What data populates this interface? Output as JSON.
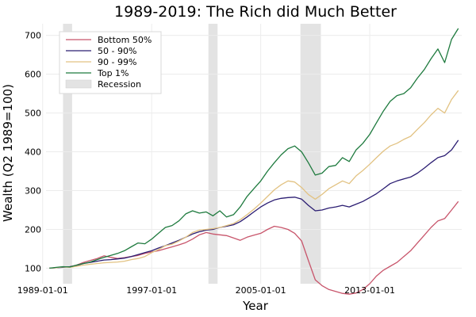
{
  "chart_data": {
    "type": "line",
    "title": "1989-2019: The Rich did Much Better",
    "xlabel": "Year",
    "ylabel": "Wealth (Q2 1989=100)",
    "xlim": [
      "1989-04-01",
      "2019-10-01"
    ],
    "ylim": [
      60,
      730
    ],
    "x_ticks": [
      "1989-01-01",
      "1997-01-01",
      "2005-01-01",
      "2013-01-01"
    ],
    "y_ticks": [
      100,
      200,
      300,
      400,
      500,
      600,
      700
    ],
    "grid": true,
    "legend_position": "top-left",
    "recessions": [
      {
        "start": "1990-07-01",
        "end": "1991-03-01"
      },
      {
        "start": "2001-03-01",
        "end": "2001-11-01"
      },
      {
        "start": "2007-12-01",
        "end": "2009-06-01"
      }
    ],
    "recession_label": "Recession",
    "recession_color": "#e3e3e3",
    "series": [
      {
        "name": "Bottom 50%",
        "color": "#c8556b",
        "points": [
          [
            "1989-07-01",
            100
          ],
          [
            "1990-01-01",
            101
          ],
          [
            "1990-07-01",
            103
          ],
          [
            "1991-01-01",
            104
          ],
          [
            "1991-07-01",
            108
          ],
          [
            "1992-01-01",
            115
          ],
          [
            "1992-07-01",
            120
          ],
          [
            "1993-01-01",
            125
          ],
          [
            "1993-07-01",
            132
          ],
          [
            "1994-01-01",
            128
          ],
          [
            "1994-07-01",
            125
          ],
          [
            "1995-01-01",
            127
          ],
          [
            "1995-07-01",
            130
          ],
          [
            "1996-01-01",
            133
          ],
          [
            "1996-07-01",
            138
          ],
          [
            "1997-01-01",
            142
          ],
          [
            "1997-07-01",
            145
          ],
          [
            "1998-01-01",
            150
          ],
          [
            "1998-07-01",
            155
          ],
          [
            "1999-01-01",
            160
          ],
          [
            "1999-07-01",
            166
          ],
          [
            "2000-01-01",
            175
          ],
          [
            "2000-07-01",
            186
          ],
          [
            "2001-01-01",
            192
          ],
          [
            "2001-07-01",
            188
          ],
          [
            "2002-01-01",
            186
          ],
          [
            "2002-07-01",
            184
          ],
          [
            "2003-01-01",
            178
          ],
          [
            "2003-07-01",
            172
          ],
          [
            "2004-01-01",
            180
          ],
          [
            "2004-07-01",
            185
          ],
          [
            "2005-01-01",
            190
          ],
          [
            "2005-07-01",
            200
          ],
          [
            "2006-01-01",
            208
          ],
          [
            "2006-07-01",
            205
          ],
          [
            "2007-01-01",
            200
          ],
          [
            "2007-07-01",
            190
          ],
          [
            "2008-01-01",
            170
          ],
          [
            "2008-07-01",
            120
          ],
          [
            "2009-01-01",
            70
          ],
          [
            "2009-07-01",
            55
          ],
          [
            "2010-01-01",
            45
          ],
          [
            "2010-07-01",
            40
          ],
          [
            "2011-01-01",
            35
          ],
          [
            "2011-07-01",
            33
          ],
          [
            "2012-01-01",
            36
          ],
          [
            "2012-07-01",
            45
          ],
          [
            "2013-01-01",
            60
          ],
          [
            "2013-07-01",
            80
          ],
          [
            "2014-01-01",
            95
          ],
          [
            "2014-07-01",
            105
          ],
          [
            "2015-01-01",
            115
          ],
          [
            "2015-07-01",
            130
          ],
          [
            "2016-01-01",
            145
          ],
          [
            "2016-07-01",
            165
          ],
          [
            "2017-01-01",
            185
          ],
          [
            "2017-07-01",
            205
          ],
          [
            "2018-01-01",
            222
          ],
          [
            "2018-07-01",
            228
          ],
          [
            "2019-01-01",
            250
          ],
          [
            "2019-07-01",
            272
          ]
        ]
      },
      {
        "name": "50 - 90%",
        "color": "#2b1d72",
        "points": [
          [
            "1989-07-01",
            100
          ],
          [
            "1990-01-01",
            101
          ],
          [
            "1990-07-01",
            102
          ],
          [
            "1991-01-01",
            104
          ],
          [
            "1991-07-01",
            107
          ],
          [
            "1992-01-01",
            112
          ],
          [
            "1992-07-01",
            115
          ],
          [
            "1993-01-01",
            118
          ],
          [
            "1993-07-01",
            121
          ],
          [
            "1994-01-01",
            122
          ],
          [
            "1994-07-01",
            124
          ],
          [
            "1995-01-01",
            126
          ],
          [
            "1995-07-01",
            130
          ],
          [
            "1996-01-01",
            135
          ],
          [
            "1996-07-01",
            140
          ],
          [
            "1997-01-01",
            145
          ],
          [
            "1997-07-01",
            152
          ],
          [
            "1998-01-01",
            158
          ],
          [
            "1998-07-01",
            165
          ],
          [
            "1999-01-01",
            172
          ],
          [
            "1999-07-01",
            180
          ],
          [
            "2000-01-01",
            188
          ],
          [
            "2000-07-01",
            194
          ],
          [
            "2001-01-01",
            198
          ],
          [
            "2001-07-01",
            200
          ],
          [
            "2002-01-01",
            205
          ],
          [
            "2002-07-01",
            208
          ],
          [
            "2003-01-01",
            212
          ],
          [
            "2003-07-01",
            220
          ],
          [
            "2004-01-01",
            232
          ],
          [
            "2004-07-01",
            245
          ],
          [
            "2005-01-01",
            258
          ],
          [
            "2005-07-01",
            268
          ],
          [
            "2006-01-01",
            276
          ],
          [
            "2006-07-01",
            280
          ],
          [
            "2007-01-01",
            282
          ],
          [
            "2007-07-01",
            283
          ],
          [
            "2008-01-01",
            278
          ],
          [
            "2008-07-01",
            262
          ],
          [
            "2009-01-01",
            248
          ],
          [
            "2009-07-01",
            250
          ],
          [
            "2010-01-01",
            255
          ],
          [
            "2010-07-01",
            258
          ],
          [
            "2011-01-01",
            262
          ],
          [
            "2011-07-01",
            258
          ],
          [
            "2012-01-01",
            265
          ],
          [
            "2012-07-01",
            272
          ],
          [
            "2013-01-01",
            282
          ],
          [
            "2013-07-01",
            292
          ],
          [
            "2014-01-01",
            305
          ],
          [
            "2014-07-01",
            318
          ],
          [
            "2015-01-01",
            325
          ],
          [
            "2015-07-01",
            330
          ],
          [
            "2016-01-01",
            335
          ],
          [
            "2016-07-01",
            345
          ],
          [
            "2017-01-01",
            358
          ],
          [
            "2017-07-01",
            372
          ],
          [
            "2018-01-01",
            385
          ],
          [
            "2018-07-01",
            390
          ],
          [
            "2019-01-01",
            405
          ],
          [
            "2019-07-01",
            430
          ]
        ]
      },
      {
        "name": "90 - 99%",
        "color": "#e2c282",
        "points": [
          [
            "1989-07-01",
            100
          ],
          [
            "1990-01-01",
            101
          ],
          [
            "1990-07-01",
            103
          ],
          [
            "1991-01-01",
            102
          ],
          [
            "1991-07-01",
            105
          ],
          [
            "1992-01-01",
            108
          ],
          [
            "1992-07-01",
            110
          ],
          [
            "1993-01-01",
            112
          ],
          [
            "1993-07-01",
            114
          ],
          [
            "1994-01-01",
            115
          ],
          [
            "1994-07-01",
            116
          ],
          [
            "1995-01-01",
            118
          ],
          [
            "1995-07-01",
            122
          ],
          [
            "1996-01-01",
            125
          ],
          [
            "1996-07-01",
            130
          ],
          [
            "1997-01-01",
            140
          ],
          [
            "1997-07-01",
            148
          ],
          [
            "1998-01-01",
            158
          ],
          [
            "1998-07-01",
            162
          ],
          [
            "1999-01-01",
            170
          ],
          [
            "1999-07-01",
            180
          ],
          [
            "2000-01-01",
            192
          ],
          [
            "2000-07-01",
            198
          ],
          [
            "2001-01-01",
            200
          ],
          [
            "2001-07-01",
            202
          ],
          [
            "2002-01-01",
            205
          ],
          [
            "2002-07-01",
            210
          ],
          [
            "2003-01-01",
            215
          ],
          [
            "2003-07-01",
            225
          ],
          [
            "2004-01-01",
            238
          ],
          [
            "2004-07-01",
            252
          ],
          [
            "2005-01-01",
            268
          ],
          [
            "2005-07-01",
            285
          ],
          [
            "2006-01-01",
            302
          ],
          [
            "2006-07-01",
            315
          ],
          [
            "2007-01-01",
            325
          ],
          [
            "2007-07-01",
            322
          ],
          [
            "2008-01-01",
            308
          ],
          [
            "2008-07-01",
            290
          ],
          [
            "2009-01-01",
            278
          ],
          [
            "2009-07-01",
            290
          ],
          [
            "2010-01-01",
            305
          ],
          [
            "2010-07-01",
            315
          ],
          [
            "2011-01-01",
            325
          ],
          [
            "2011-07-01",
            318
          ],
          [
            "2012-01-01",
            338
          ],
          [
            "2012-07-01",
            352
          ],
          [
            "2013-01-01",
            368
          ],
          [
            "2013-07-01",
            385
          ],
          [
            "2014-01-01",
            402
          ],
          [
            "2014-07-01",
            415
          ],
          [
            "2015-01-01",
            422
          ],
          [
            "2015-07-01",
            432
          ],
          [
            "2016-01-01",
            440
          ],
          [
            "2016-07-01",
            458
          ],
          [
            "2017-01-01",
            475
          ],
          [
            "2017-07-01",
            495
          ],
          [
            "2018-01-01",
            512
          ],
          [
            "2018-07-01",
            500
          ],
          [
            "2019-01-01",
            535
          ],
          [
            "2019-07-01",
            558
          ]
        ]
      },
      {
        "name": "Top 1%",
        "color": "#1e7a3e",
        "points": [
          [
            "1989-07-01",
            100
          ],
          [
            "1990-01-01",
            102
          ],
          [
            "1990-07-01",
            104
          ],
          [
            "1991-01-01",
            103
          ],
          [
            "1991-07-01",
            108
          ],
          [
            "1992-01-01",
            112
          ],
          [
            "1992-07-01",
            116
          ],
          [
            "1993-01-01",
            122
          ],
          [
            "1993-07-01",
            128
          ],
          [
            "1994-01-01",
            133
          ],
          [
            "1994-07-01",
            138
          ],
          [
            "1995-01-01",
            145
          ],
          [
            "1995-07-01",
            155
          ],
          [
            "1996-01-01",
            165
          ],
          [
            "1996-07-01",
            163
          ],
          [
            "1997-01-01",
            175
          ],
          [
            "1997-07-01",
            190
          ],
          [
            "1998-01-01",
            205
          ],
          [
            "1998-07-01",
            210
          ],
          [
            "1999-01-01",
            222
          ],
          [
            "1999-07-01",
            240
          ],
          [
            "2000-01-01",
            248
          ],
          [
            "2000-07-01",
            242
          ],
          [
            "2001-01-01",
            245
          ],
          [
            "2001-07-01",
            235
          ],
          [
            "2002-01-01",
            248
          ],
          [
            "2002-07-01",
            232
          ],
          [
            "2003-01-01",
            238
          ],
          [
            "2003-07-01",
            258
          ],
          [
            "2004-01-01",
            285
          ],
          [
            "2004-07-01",
            305
          ],
          [
            "2005-01-01",
            325
          ],
          [
            "2005-07-01",
            350
          ],
          [
            "2006-01-01",
            372
          ],
          [
            "2006-07-01",
            392
          ],
          [
            "2007-01-01",
            408
          ],
          [
            "2007-07-01",
            415
          ],
          [
            "2008-01-01",
            400
          ],
          [
            "2008-07-01",
            372
          ],
          [
            "2009-01-01",
            340
          ],
          [
            "2009-07-01",
            345
          ],
          [
            "2010-01-01",
            362
          ],
          [
            "2010-07-01",
            365
          ],
          [
            "2011-01-01",
            385
          ],
          [
            "2011-07-01",
            375
          ],
          [
            "2012-01-01",
            405
          ],
          [
            "2012-07-01",
            422
          ],
          [
            "2013-01-01",
            445
          ],
          [
            "2013-07-01",
            475
          ],
          [
            "2014-01-01",
            505
          ],
          [
            "2014-07-01",
            530
          ],
          [
            "2015-01-01",
            545
          ],
          [
            "2015-07-01",
            550
          ],
          [
            "2016-01-01",
            565
          ],
          [
            "2016-07-01",
            590
          ],
          [
            "2017-01-01",
            612
          ],
          [
            "2017-07-01",
            640
          ],
          [
            "2018-01-01",
            665
          ],
          [
            "2018-07-01",
            630
          ],
          [
            "2019-01-01",
            690
          ],
          [
            "2019-07-01",
            718
          ]
        ]
      }
    ]
  }
}
